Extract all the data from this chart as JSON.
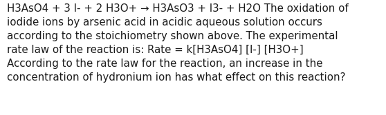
{
  "background_color": "#ffffff",
  "text_color": "#1a1a1a",
  "text": "H3AsO4 + 3 I- + 2 H3O+ → H3AsO3 + I3- + H2O The oxidation of\niodide ions by arsenic acid in acidic aqueous solution occurs\naccording to the stoichiometry shown above. The experimental\nrate law of the reaction is: Rate = k[H3AsO4] [I-] [H3O+]\nAccording to the rate law for the reaction, an increase in the\nconcentration of hydronium ion has what effect on this reaction?",
  "font_size": 10.8,
  "font_family": "DejaVu Sans",
  "figwidth": 5.58,
  "figheight": 1.67,
  "dpi": 100
}
